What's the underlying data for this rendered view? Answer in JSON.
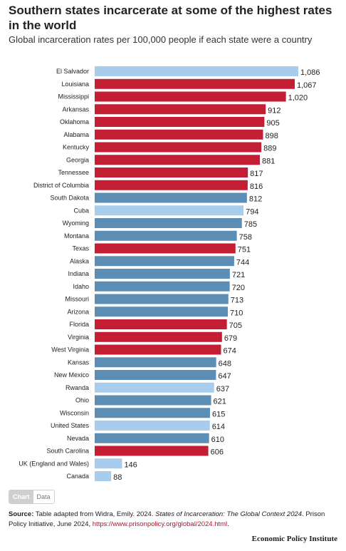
{
  "header": {
    "title": "Southern states incarcerate at some of the highest rates in the world",
    "subtitle": "Global incarceration rates per 100,000 people if each state were a country"
  },
  "toggle": {
    "chart_label": "Chart",
    "data_label": "Data"
  },
  "source": {
    "label": "Source:",
    "text_prefix": " Table adapted from Widra, Emily. 2024. ",
    "work_title": "States of Incarceration: The Global Context 2024",
    "text_middle": ". Prison Policy Initiative, June 2024, ",
    "url": "https://www.prisonpolicy.org/global/2024.html",
    "text_suffix": "."
  },
  "brand": "Economic Policy Institute",
  "colors": {
    "south": "#c41e35",
    "us_state": "#5b8db5",
    "country": "#a8cdec"
  },
  "chart_data": {
    "type": "bar",
    "orientation": "horizontal",
    "title": "Southern states incarcerate at some of the highest rates in the world",
    "subtitle": "Global incarceration rates per 100,000 people if each state were a country",
    "xlabel": "",
    "ylabel": "",
    "xlim": [
      0,
      1086
    ],
    "grid": false,
    "legend": "none",
    "categories": [
      "El Salvador",
      "Louisiana",
      "Mississippi",
      "Arkansas",
      "Oklahoma",
      "Alabama",
      "Kentucky",
      "Georgia",
      "Tennessee",
      "District of Columbia",
      "South Dakota",
      "Cuba",
      "Wyoming",
      "Montana",
      "Texas",
      "Alaska",
      "Indiana",
      "Idaho",
      "Missouri",
      "Arizona",
      "Florida",
      "Virginia",
      "West Virginia",
      "Kansas",
      "New Mexico",
      "Rwanda",
      "Ohio",
      "Wisconsin",
      "United States",
      "Nevada",
      "South Carolina",
      "UK (England and Wales)",
      "Canada"
    ],
    "values": [
      1086,
      1067,
      1020,
      912,
      905,
      898,
      889,
      881,
      817,
      816,
      812,
      794,
      785,
      758,
      751,
      744,
      721,
      720,
      713,
      710,
      705,
      679,
      674,
      648,
      647,
      637,
      621,
      615,
      614,
      610,
      606,
      146,
      88
    ],
    "value_labels": [
      "1,086",
      "1,067",
      "1,020",
      "912",
      "905",
      "898",
      "889",
      "881",
      "817",
      "816",
      "812",
      "794",
      "785",
      "758",
      "751",
      "744",
      "721",
      "720",
      "713",
      "710",
      "705",
      "679",
      "674",
      "648",
      "647",
      "637",
      "621",
      "615",
      "614",
      "610",
      "606",
      "146",
      "88"
    ],
    "groups": [
      "country",
      "south",
      "south",
      "south",
      "south",
      "south",
      "south",
      "south",
      "south",
      "south",
      "us_state",
      "country",
      "us_state",
      "us_state",
      "south",
      "us_state",
      "us_state",
      "us_state",
      "us_state",
      "us_state",
      "south",
      "south",
      "south",
      "us_state",
      "us_state",
      "country",
      "us_state",
      "us_state",
      "country",
      "us_state",
      "south",
      "country",
      "country"
    ]
  }
}
